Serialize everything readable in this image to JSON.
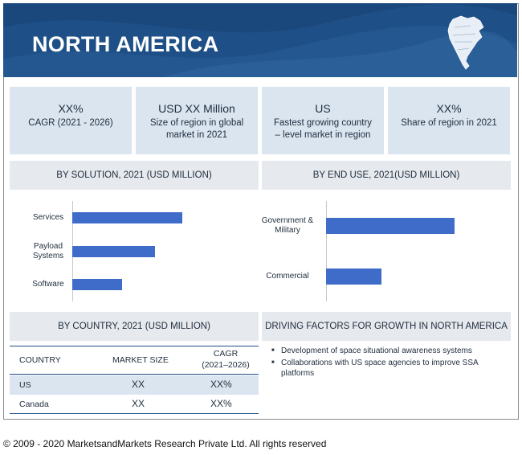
{
  "banner": {
    "title": "NORTH AMERICA",
    "map_icon": "north-america-map-icon",
    "colors": {
      "banner": "#1e4f86",
      "kpi_bg": "#dae5f0",
      "section_bg": "#e6e9ed",
      "bar": "#3f6bc9"
    }
  },
  "kpis": [
    {
      "value": "XX%",
      "label": "CAGR (2021 - 2026)"
    },
    {
      "value": "USD XX Million",
      "label": "Size of region in global market in 2021"
    },
    {
      "value": "US",
      "label": "Fastest growing country – level market in region"
    },
    {
      "value": "XX%",
      "label": "Share of region in 2021"
    }
  ],
  "sections": {
    "by_solution": "BY SOLUTION, 2021 (USD MILLION)",
    "by_end_use": "BY END USE, 2021(USD MILLION)",
    "by_country": "BY COUNTRY, 2021 (USD MILLION)",
    "drivers": "DRIVING FACTORS FOR GROWTH IN NORTH AMERICA"
  },
  "chart_data": [
    {
      "type": "bar",
      "orientation": "horizontal",
      "title": "BY SOLUTION, 2021 (USD MILLION)",
      "categories": [
        "Services",
        "Payload Systems",
        "Software"
      ],
      "category_lines": [
        [
          "Services"
        ],
        [
          "Payload",
          "Systems"
        ],
        [
          "Software"
        ]
      ],
      "values": [
        100,
        75,
        45
      ],
      "xlim": [
        0,
        100
      ],
      "grid": false
    },
    {
      "type": "bar",
      "orientation": "horizontal",
      "title": "BY END USE, 2021(USD MILLION)",
      "categories": [
        "Government & Military",
        "Commercial"
      ],
      "category_lines": [
        [
          "Government &",
          "Military"
        ],
        [
          "Commercial"
        ]
      ],
      "values": [
        100,
        43
      ],
      "xlim": [
        0,
        100
      ],
      "grid": false
    }
  ],
  "country_table": {
    "headers": [
      "COUNTRY",
      "MARKET SIZE",
      "CAGR",
      "(2021–2026)"
    ],
    "rows": [
      {
        "country": "US",
        "market_size": "XX",
        "cagr": "XX%"
      },
      {
        "country": "Canada",
        "market_size": "XX",
        "cagr": "XX%"
      }
    ]
  },
  "drivers": [
    "Development of space situational awareness systems",
    "Collaborations with US space agencies to improve SSA platforms"
  ],
  "footer": {
    "copyright": "© 2009 - 2020 MarketsandMarkets Research Private Ltd. All rights reserved"
  }
}
